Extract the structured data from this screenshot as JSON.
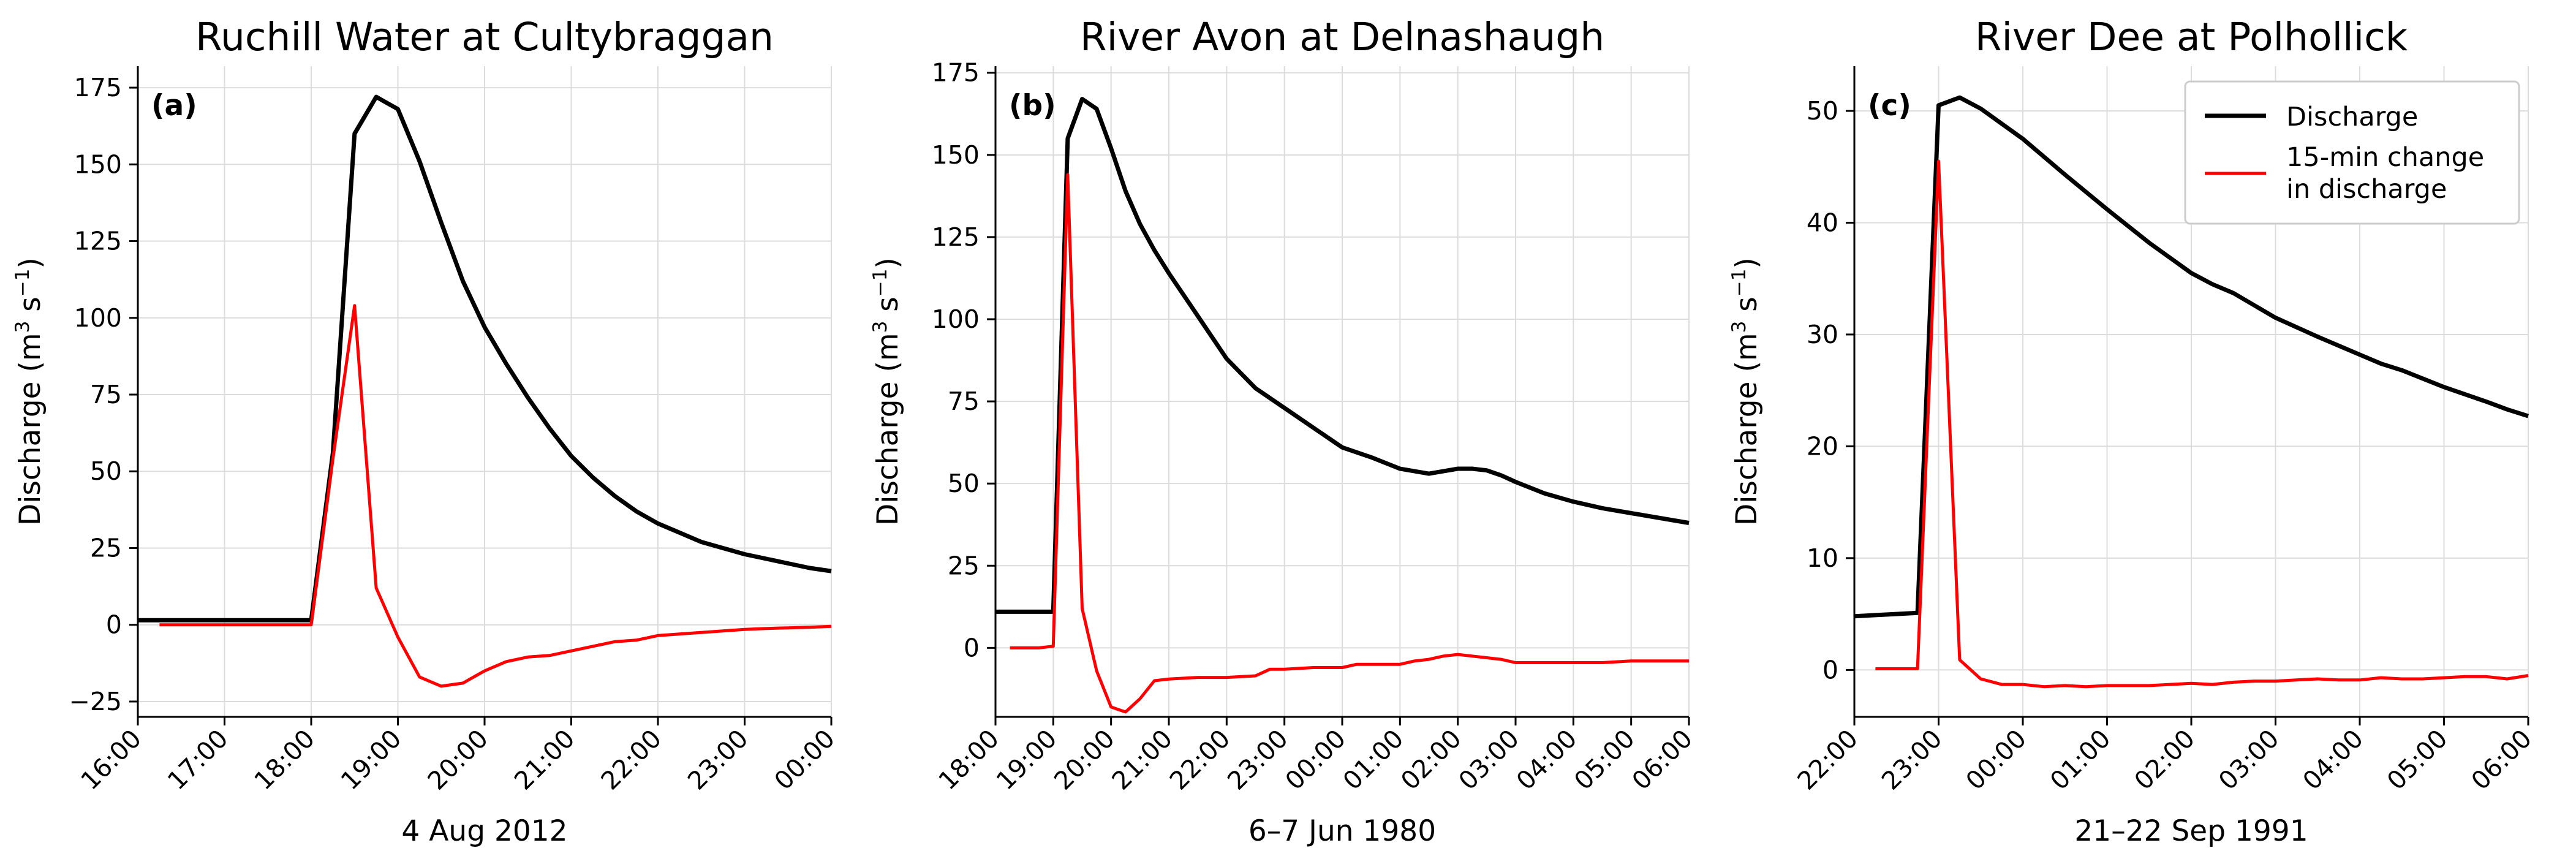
{
  "chart_data": [
    {
      "type": "line",
      "panel_label": "(a)",
      "title": "Ruchill Water at Cultybraggan",
      "xlabel": "4 Aug 2012",
      "ylabel": {
        "main": "Discharge (m",
        "sup1": "3",
        "mid": " s",
        "sup2": "−1",
        "end": ")"
      },
      "x_unit": "hours",
      "xlim": [
        16,
        24
      ],
      "ylim": [
        -30,
        182
      ],
      "x_ticks": [
        16,
        17,
        18,
        19,
        20,
        21,
        22,
        23,
        24
      ],
      "x_tick_labels": [
        "16:00",
        "17:00",
        "18:00",
        "19:00",
        "20:00",
        "21:00",
        "22:00",
        "23:00",
        "00:00"
      ],
      "y_ticks": [
        -25,
        0,
        25,
        50,
        75,
        100,
        125,
        150,
        175
      ],
      "y_tick_labels": [
        "−25",
        "0",
        "25",
        "50",
        "75",
        "100",
        "125",
        "150",
        "175"
      ],
      "grid": true,
      "series": [
        {
          "name": "Discharge",
          "color": "#000000",
          "x": [
            16.0,
            16.25,
            16.5,
            16.75,
            17.0,
            17.25,
            17.5,
            17.75,
            18.0,
            18.25,
            18.5,
            18.75,
            19.0,
            19.25,
            19.5,
            19.75,
            20.0,
            20.25,
            20.5,
            20.75,
            21.0,
            21.25,
            21.5,
            21.75,
            22.0,
            22.25,
            22.5,
            22.75,
            23.0,
            23.25,
            23.5,
            23.75,
            24.0
          ],
          "y": [
            1.5,
            1.5,
            1.5,
            1.5,
            1.5,
            1.5,
            1.5,
            1.5,
            1.5,
            56,
            160,
            172,
            168,
            151,
            131,
            112,
            97,
            85,
            74,
            64,
            55,
            48,
            42,
            37,
            33,
            30,
            27,
            25,
            23,
            21.5,
            20,
            18.5,
            17.5
          ]
        },
        {
          "name": "15-min change in discharge",
          "color": "#ff0000",
          "x": [
            16.25,
            16.5,
            16.75,
            17.0,
            17.25,
            17.5,
            17.75,
            18.0,
            18.25,
            18.5,
            18.75,
            19.0,
            19.25,
            19.5,
            19.75,
            20.0,
            20.25,
            20.5,
            20.75,
            21.0,
            21.25,
            21.5,
            21.75,
            22.0,
            22.25,
            22.5,
            22.75,
            23.0,
            23.25,
            23.5,
            23.75,
            24.0
          ],
          "y": [
            0,
            0,
            0,
            0,
            0,
            0,
            0,
            0,
            54,
            104,
            12,
            -4,
            -17,
            -20,
            -19,
            -15,
            -12,
            -10.5,
            -10,
            -8.5,
            -7,
            -5.5,
            -5,
            -3.5,
            -3,
            -2.5,
            -2,
            -1.5,
            -1.2,
            -1,
            -0.8,
            -0.5
          ]
        }
      ]
    },
    {
      "type": "line",
      "panel_label": "(b)",
      "title": "River Avon at Delnashaugh",
      "xlabel": "6–7 Jun 1980",
      "ylabel": {
        "main": "Discharge (m",
        "sup1": "3",
        "mid": " s",
        "sup2": "−1",
        "end": ")"
      },
      "x_unit": "hours",
      "xlim": [
        18,
        30
      ],
      "ylim": [
        -21,
        177
      ],
      "x_ticks": [
        18,
        19,
        20,
        21,
        22,
        23,
        24,
        25,
        26,
        27,
        28,
        29,
        30
      ],
      "x_tick_labels": [
        "18:00",
        "19:00",
        "20:00",
        "21:00",
        "22:00",
        "23:00",
        "00:00",
        "01:00",
        "02:00",
        "03:00",
        "04:00",
        "05:00",
        "06:00"
      ],
      "y_ticks": [
        0,
        25,
        50,
        75,
        100,
        125,
        150,
        175
      ],
      "y_tick_labels": [
        "0",
        "25",
        "50",
        "75",
        "100",
        "125",
        "150",
        "175"
      ],
      "grid": true,
      "series": [
        {
          "name": "Discharge",
          "color": "#000000",
          "x": [
            18.0,
            18.25,
            18.5,
            18.75,
            19.0,
            19.25,
            19.5,
            19.75,
            20.0,
            20.25,
            20.5,
            20.75,
            21.0,
            21.5,
            22.0,
            22.5,
            23.0,
            23.5,
            24.0,
            24.5,
            25.0,
            25.5,
            26.0,
            26.25,
            26.5,
            26.75,
            27.0,
            27.5,
            28.0,
            28.5,
            29.0,
            29.5,
            30.0
          ],
          "y": [
            11,
            11,
            11,
            11,
            11,
            155,
            167,
            164,
            152,
            139,
            129,
            121,
            114,
            101,
            88,
            79,
            73,
            67,
            61,
            58,
            54.5,
            53,
            54.5,
            54.5,
            54,
            52.5,
            50.5,
            47,
            44.5,
            42.5,
            41,
            39.5,
            38
          ]
        },
        {
          "name": "15-min change in discharge",
          "color": "#ff0000",
          "x": [
            18.25,
            18.5,
            18.75,
            19.0,
            19.25,
            19.5,
            19.75,
            20.0,
            20.25,
            20.5,
            20.75,
            21.0,
            21.5,
            22.0,
            22.5,
            22.75,
            23.0,
            23.5,
            24.0,
            24.25,
            24.5,
            25.0,
            25.25,
            25.5,
            25.75,
            26.0,
            26.25,
            26.5,
            26.75,
            27.0,
            27.25,
            27.5,
            28.0,
            28.5,
            29.0,
            29.5,
            30.0
          ],
          "y": [
            0,
            0,
            0,
            0.5,
            144,
            12,
            -7,
            -18,
            -19.5,
            -15.5,
            -10,
            -9.5,
            -9,
            -9,
            -8.5,
            -6.5,
            -6.5,
            -6,
            -6,
            -5,
            -5,
            -5,
            -4,
            -3.5,
            -2.5,
            -2,
            -2.5,
            -3,
            -3.5,
            -4.5,
            -4.5,
            -4.5,
            -4.5,
            -4.5,
            -4,
            -4,
            -4
          ]
        }
      ]
    },
    {
      "type": "line",
      "panel_label": "(c)",
      "title": "River Dee at Polhollick",
      "xlabel": "21–22 Sep 1991",
      "ylabel": {
        "main": "Discharge (m",
        "sup1": "3",
        "mid": " s",
        "sup2": "−1",
        "end": ")"
      },
      "x_unit": "hours",
      "xlim": [
        22,
        30
      ],
      "ylim": [
        -4.2,
        54
      ],
      "x_ticks": [
        22,
        23,
        24,
        25,
        26,
        27,
        28,
        29,
        30
      ],
      "x_tick_labels": [
        "22:00",
        "23:00",
        "00:00",
        "01:00",
        "02:00",
        "03:00",
        "04:00",
        "05:00",
        "06:00"
      ],
      "y_ticks": [
        0,
        10,
        20,
        30,
        40,
        50
      ],
      "y_tick_labels": [
        "0",
        "10",
        "20",
        "30",
        "40",
        "50"
      ],
      "grid": true,
      "legend": {
        "position": "top-right",
        "entries": [
          "Discharge",
          "15-min change",
          "in discharge"
        ]
      },
      "series": [
        {
          "name": "Discharge",
          "color": "#000000",
          "x": [
            22.0,
            22.25,
            22.5,
            22.75,
            23.0,
            23.25,
            23.5,
            24.0,
            24.5,
            25.0,
            25.5,
            26.0,
            26.25,
            26.5,
            27.0,
            27.5,
            28.0,
            28.25,
            28.5,
            29.0,
            29.5,
            29.75,
            30.0
          ],
          "y": [
            4.8,
            4.9,
            5.0,
            5.1,
            50.5,
            51.2,
            50.2,
            47.5,
            44.3,
            41.2,
            38.2,
            35.5,
            34.5,
            33.7,
            31.5,
            29.8,
            28.2,
            27.4,
            26.8,
            25.3,
            24.0,
            23.3,
            22.7
          ]
        },
        {
          "name": "15-min change in discharge",
          "color": "#ff0000",
          "x": [
            22.25,
            22.5,
            22.75,
            23.0,
            23.25,
            23.5,
            23.75,
            24.0,
            24.25,
            24.5,
            24.75,
            25.0,
            25.5,
            26.0,
            26.25,
            26.5,
            26.75,
            27.0,
            27.25,
            27.5,
            27.75,
            28.0,
            28.25,
            28.5,
            28.75,
            29.0,
            29.25,
            29.5,
            29.75,
            30.0
          ],
          "y": [
            0.1,
            0.1,
            0.1,
            45.5,
            0.9,
            -0.8,
            -1.3,
            -1.3,
            -1.5,
            -1.4,
            -1.5,
            -1.4,
            -1.4,
            -1.2,
            -1.3,
            -1.1,
            -1.0,
            -1.0,
            -0.9,
            -0.8,
            -0.9,
            -0.9,
            -0.7,
            -0.8,
            -0.8,
            -0.7,
            -0.6,
            -0.6,
            -0.8,
            -0.5
          ]
        }
      ]
    }
  ]
}
